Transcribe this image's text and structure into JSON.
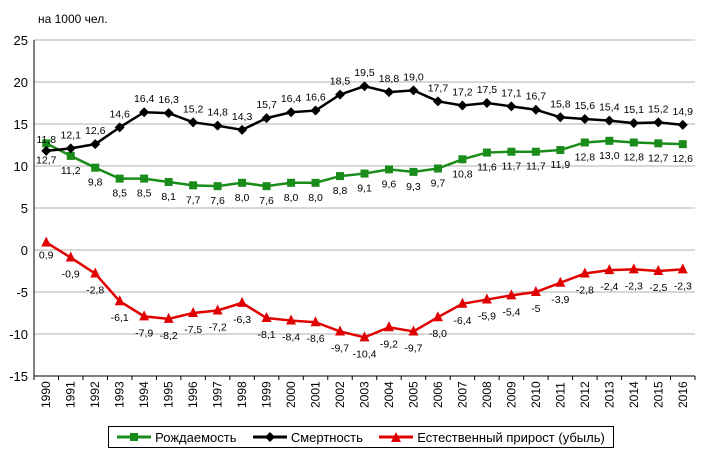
{
  "unit_label": "на 1000 чел.",
  "chart_data": {
    "type": "line",
    "x": [
      "1990",
      "1991",
      "1992",
      "1993",
      "1994",
      "1995",
      "1996",
      "1997",
      "1998",
      "1999",
      "2000",
      "2001",
      "2002",
      "2003",
      "2004",
      "2005",
      "2006",
      "2007",
      "2008",
      "2009",
      "2010",
      "2011",
      "2012",
      "2013",
      "2014",
      "2015",
      "2016"
    ],
    "ylim": [
      -15,
      25
    ],
    "yticks": [
      -15,
      -10,
      -5,
      0,
      5,
      10,
      15,
      20,
      25
    ],
    "grid": true,
    "legend_position": "bottom",
    "series": [
      {
        "name": "Рождаемость",
        "color": "#1a8c1a",
        "marker": "square",
        "values": [
          12.7,
          11.2,
          9.8,
          8.5,
          8.5,
          8.1,
          7.7,
          7.6,
          8.0,
          7.6,
          8.0,
          8.0,
          8.8,
          9.1,
          9.6,
          9.3,
          9.7,
          10.8,
          11.6,
          11.7,
          11.7,
          11.9,
          12.8,
          13.0,
          12.8,
          12.7,
          12.6
        ],
        "labels": [
          "12,7",
          "11,2",
          "9,8",
          "8,5",
          "8,5",
          "8,1",
          "7,7",
          "7,6",
          "8,0",
          "7,6",
          "8,0",
          "8,0",
          "8,8",
          "9,1",
          "9,6",
          "9,3",
          "9,7",
          "10,8",
          "11,6",
          "11,7",
          "11,7",
          "11,9",
          "12,8",
          "13,0",
          "12,8",
          "12,7",
          "12,6"
        ]
      },
      {
        "name": "Смертность",
        "color": "#000000",
        "marker": "diamond",
        "values": [
          11.8,
          12.1,
          12.6,
          14.6,
          16.4,
          16.3,
          15.2,
          14.8,
          14.3,
          15.7,
          16.4,
          16.6,
          18.5,
          19.5,
          18.8,
          19.0,
          17.7,
          17.2,
          17.5,
          17.1,
          16.7,
          15.8,
          15.6,
          15.4,
          15.1,
          15.2,
          14.9
        ],
        "labels": [
          "11,8",
          "12,1",
          "12,6",
          "14,6",
          "16,4",
          "16,3",
          "15,2",
          "14,8",
          "14,3",
          "15,7",
          "16,4",
          "16,6",
          "18,5",
          "19,5",
          "18,8",
          "19,0",
          "17,7",
          "17,2",
          "17,5",
          "17,1",
          "16,7",
          "15,8",
          "15,6",
          "15,4",
          "15,1",
          "15,2",
          "14,9"
        ]
      },
      {
        "name": "Естественный прирост (убыль)",
        "color": "#e00000",
        "marker": "triangle",
        "values": [
          0.9,
          -0.9,
          -2.8,
          -6.1,
          -7.9,
          -8.2,
          -7.5,
          -7.2,
          -6.3,
          -8.1,
          -8.4,
          -8.6,
          -9.7,
          -10.4,
          -9.2,
          -9.7,
          -8.0,
          -6.4,
          -5.9,
          -5.4,
          -5.0,
          -3.9,
          -2.8,
          -2.4,
          -2.3,
          -2.5,
          -2.3
        ],
        "labels": [
          "0,9",
          "-0,9",
          "-2,8",
          "-6,1",
          "-7,9",
          "-8,2",
          "-7,5",
          "-7,2",
          "-6,3",
          "-8,1",
          "-8,4",
          "-8,6",
          "-9,7",
          "-10,4",
          "-9,2",
          "-9,7",
          "-8,0",
          "-6,4",
          "-5,9",
          "-5,4",
          "-5",
          "-3,9",
          "-2,8",
          "-2,4",
          "-2,3",
          "-2,5",
          "-2,3"
        ]
      }
    ]
  }
}
